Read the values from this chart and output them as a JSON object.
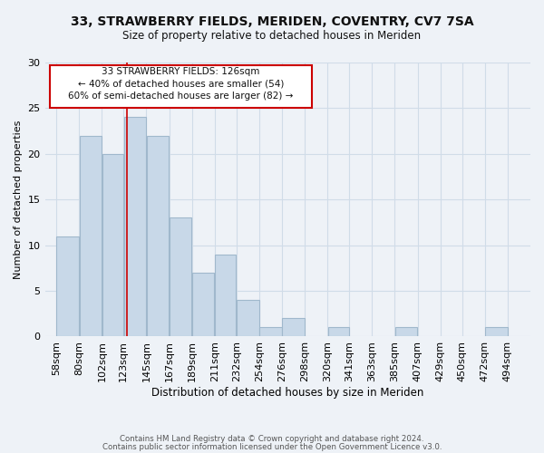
{
  "title_line1": "33, STRAWBERRY FIELDS, MERIDEN, COVENTRY, CV7 7SA",
  "title_line2": "Size of property relative to detached houses in Meriden",
  "xlabel": "Distribution of detached houses by size in Meriden",
  "ylabel": "Number of detached properties",
  "bar_left_edges": [
    58,
    80,
    102,
    123,
    145,
    167,
    189,
    211,
    232,
    254,
    276,
    298,
    320,
    341,
    363,
    385,
    407,
    429,
    450,
    472
  ],
  "bar_widths": [
    22,
    22,
    21,
    22,
    22,
    22,
    22,
    21,
    22,
    22,
    22,
    22,
    21,
    22,
    22,
    22,
    22,
    21,
    22,
    22
  ],
  "bar_heights": [
    11,
    22,
    20,
    24,
    22,
    13,
    7,
    9,
    4,
    1,
    2,
    0,
    1,
    0,
    0,
    1,
    0,
    0,
    0,
    1
  ],
  "bar_color": "#c8d8e8",
  "bar_edgecolor": "#a0b8cc",
  "property_line_x": 126,
  "annotation_text_line1": "33 STRAWBERRY FIELDS: 126sqm",
  "annotation_text_line2": "← 40% of detached houses are smaller (54)",
  "annotation_text_line3": "60% of semi-detached houses are larger (82) →",
  "annotation_box_color": "#ffffff",
  "annotation_border_color": "#cc0000",
  "tick_labels": [
    "58sqm",
    "80sqm",
    "102sqm",
    "123sqm",
    "145sqm",
    "167sqm",
    "189sqm",
    "211sqm",
    "232sqm",
    "254sqm",
    "276sqm",
    "298sqm",
    "320sqm",
    "341sqm",
    "363sqm",
    "385sqm",
    "407sqm",
    "429sqm",
    "450sqm",
    "472sqm",
    "494sqm"
  ],
  "tick_positions": [
    58,
    80,
    102,
    123,
    145,
    167,
    189,
    211,
    232,
    254,
    276,
    298,
    320,
    341,
    363,
    385,
    407,
    429,
    450,
    472,
    494
  ],
  "ylim": [
    0,
    30
  ],
  "xlim": [
    47,
    516
  ],
  "yticks": [
    0,
    5,
    10,
    15,
    20,
    25,
    30
  ],
  "grid_color": "#d0dce8",
  "background_color": "#eef2f7",
  "footer_line1": "Contains HM Land Registry data © Crown copyright and database right 2024.",
  "footer_line2": "Contains public sector information licensed under the Open Government Licence v3.0."
}
